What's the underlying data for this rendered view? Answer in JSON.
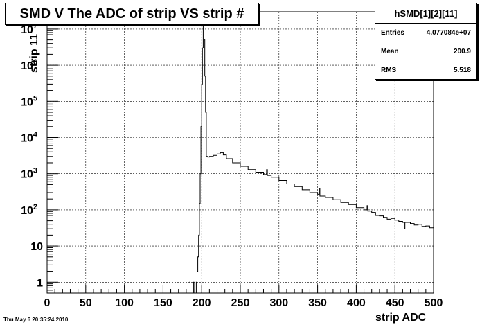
{
  "title": "SMD V The ADC of strip VS strip #",
  "stats": {
    "name": "hSMD[1][2][11]",
    "rows": [
      {
        "label": "Entries",
        "value": "4.077084e+07"
      },
      {
        "label": "Mean",
        "value": "200.9"
      },
      {
        "label": "RMS",
        "value": "5.518"
      }
    ]
  },
  "footer": "Thu May  6 20:35:24 2010",
  "chart_data": {
    "type": "line",
    "title": "SMD V The ADC of strip VS strip #",
    "xlabel": "strip ADC",
    "ylabel": "strip 11",
    "xlim": [
      0,
      500
    ],
    "ylim": [
      0.5,
      30000000
    ],
    "yscale": "log",
    "grid": true,
    "legend": "none",
    "xticks": [
      0,
      50,
      100,
      150,
      200,
      250,
      300,
      350,
      400,
      450,
      500
    ],
    "yticks": [
      {
        "value": 1,
        "label": "1"
      },
      {
        "value": 10,
        "label": "10"
      },
      {
        "value": 100,
        "label": "10",
        "sup": "2"
      },
      {
        "value": 1000,
        "label": "10",
        "sup": "3"
      },
      {
        "value": 10000,
        "label": "10",
        "sup": "4"
      },
      {
        "value": 100000,
        "label": "10",
        "sup": "5"
      },
      {
        "value": 1000000,
        "label": "10",
        "sup": "6"
      },
      {
        "value": 10000000,
        "label": "10",
        "sup": "7"
      }
    ],
    "series": [
      {
        "color": "#000000",
        "points": [
          [
            184,
            1
          ],
          [
            185,
            0.5
          ],
          [
            186,
            0.5
          ],
          [
            189,
            1
          ],
          [
            190,
            0.5
          ],
          [
            193,
            1
          ],
          [
            194,
            2
          ],
          [
            195,
            5
          ],
          [
            196,
            20
          ],
          [
            197,
            150
          ],
          [
            198,
            1000
          ],
          [
            199,
            20000
          ],
          [
            200,
            300000
          ],
          [
            201,
            3000000
          ],
          [
            202,
            12000000
          ],
          [
            203,
            5000000
          ],
          [
            204,
            500000
          ],
          [
            205,
            50000
          ],
          [
            206,
            3000
          ],
          [
            208,
            2900
          ],
          [
            210,
            3000
          ],
          [
            215,
            3200
          ],
          [
            220,
            3500
          ],
          [
            224,
            3800
          ],
          [
            228,
            3300
          ],
          [
            232,
            2600
          ],
          [
            240,
            2000
          ],
          [
            250,
            1600
          ],
          [
            260,
            1300
          ],
          [
            270,
            1100
          ],
          [
            280,
            950
          ],
          [
            284,
            1300
          ],
          [
            285,
            900
          ],
          [
            290,
            800
          ],
          [
            300,
            650
          ],
          [
            310,
            520
          ],
          [
            320,
            440
          ],
          [
            330,
            360
          ],
          [
            340,
            300
          ],
          [
            350,
            270
          ],
          [
            352,
            400
          ],
          [
            353,
            240
          ],
          [
            360,
            220
          ],
          [
            370,
            190
          ],
          [
            380,
            160
          ],
          [
            390,
            140
          ],
          [
            400,
            115
          ],
          [
            410,
            100
          ],
          [
            414,
            130
          ],
          [
            415,
            92
          ],
          [
            420,
            85
          ],
          [
            425,
            70
          ],
          [
            430,
            68
          ],
          [
            435,
            62
          ],
          [
            440,
            55
          ],
          [
            445,
            58
          ],
          [
            450,
            52
          ],
          [
            455,
            48
          ],
          [
            460,
            45
          ],
          [
            462,
            30
          ],
          [
            463,
            45
          ],
          [
            470,
            42
          ],
          [
            475,
            38
          ],
          [
            480,
            40
          ],
          [
            485,
            35
          ],
          [
            490,
            36
          ],
          [
            495,
            32
          ],
          [
            500,
            30
          ]
        ]
      }
    ]
  }
}
